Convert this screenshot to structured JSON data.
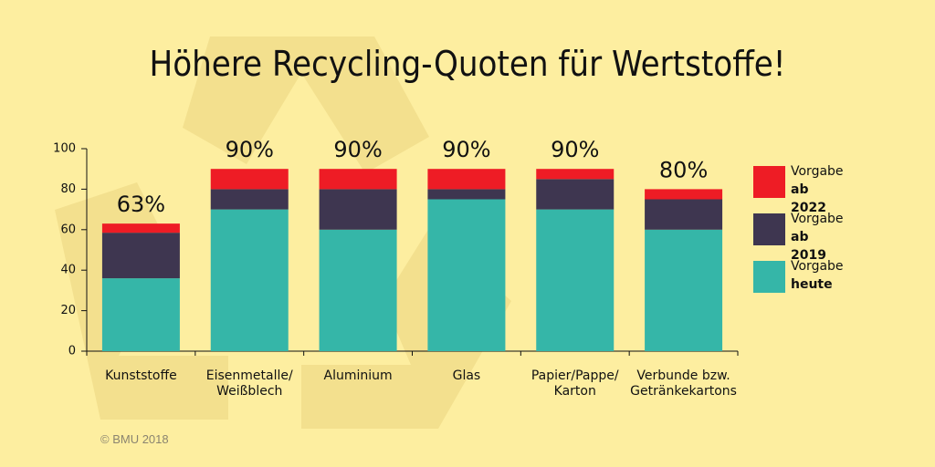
{
  "chart_data": {
    "type": "stacked_bar",
    "title": "Höhere Recycling-Quoten für Wertstoffe!",
    "categories": [
      "Kunststoffe",
      "Eisenmetalle/\nWeißblech",
      "Aluminium",
      "Glas",
      "Papier/Pappe/\nKarton",
      "Verbunde bzw.\nGetränkekartons"
    ],
    "series": [
      {
        "name": "Vorgabe\nheute",
        "color": "#35b6a8",
        "values": [
          36,
          70,
          60,
          75,
          70,
          60
        ]
      },
      {
        "name": "Vorgabe\nab 2019",
        "color": "#3e3650",
        "values": [
          22.5,
          10,
          20,
          5,
          15,
          15
        ]
      },
      {
        "name": "Vorgabe\nab 2022",
        "color": "#ee1c25",
        "values": [
          4.5,
          10,
          10,
          10,
          5,
          5
        ]
      }
    ],
    "totals": [
      63,
      90,
      90,
      90,
      90,
      80
    ],
    "total_labels": [
      "63%",
      "90%",
      "90%",
      "90%",
      "90%",
      "80%"
    ],
    "ylim": [
      0,
      100
    ],
    "yticks": [
      0,
      20,
      40,
      60,
      80,
      100
    ],
    "legend": "right",
    "credit": "© BMU 2018"
  }
}
